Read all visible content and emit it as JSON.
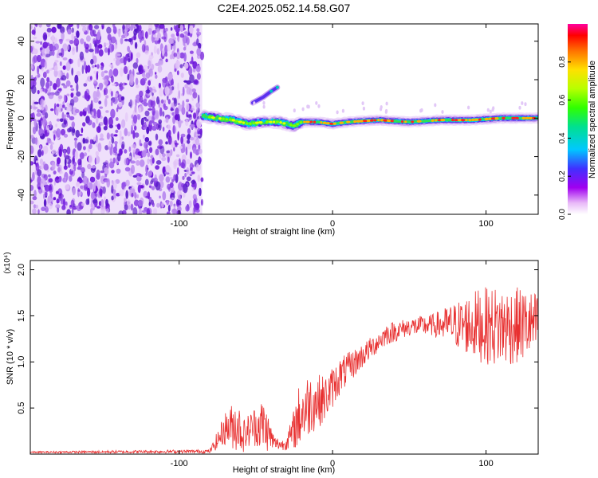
{
  "title": "C2E4.2025.052.14.58.G07",
  "chart_data": [
    {
      "type": "heatmap",
      "name": "spectrogram",
      "xlabel": "Height of straight line (km)",
      "ylabel": "Frequency (Hz)",
      "xlim": [
        -197,
        134
      ],
      "ylim": [
        -50,
        49
      ],
      "xticks": [
        -100,
        0,
        100
      ],
      "yticks": [
        -40,
        -20,
        0,
        20,
        40
      ],
      "xticklabels": [
        "-100",
        "0",
        "100"
      ],
      "yticklabels": [
        "-40",
        "-20",
        "0",
        "20",
        "40"
      ],
      "description_regions": {
        "noise_region_x": [
          -197,
          -85
        ],
        "signal_track": [
          {
            "x": -85,
            "y": 1
          },
          {
            "x": -75,
            "y": 0
          },
          {
            "x": -65,
            "y": -1
          },
          {
            "x": -55,
            "y": -3
          },
          {
            "x": -45,
            "y": -2
          },
          {
            "x": -35,
            "y": -2
          },
          {
            "x": -25,
            "y": -4
          },
          {
            "x": -20,
            "y": -2
          },
          {
            "x": -10,
            "y": -2
          },
          {
            "x": 0,
            "y": -3
          },
          {
            "x": 10,
            "y": -2
          },
          {
            "x": 30,
            "y": -1
          },
          {
            "x": 50,
            "y": -2
          },
          {
            "x": 70,
            "y": -1
          },
          {
            "x": 90,
            "y": -1
          },
          {
            "x": 110,
            "y": 0
          },
          {
            "x": 134,
            "y": 0
          }
        ],
        "side_branch": [
          {
            "x": -52,
            "y": 8
          },
          {
            "x": -45,
            "y": 11
          },
          {
            "x": -40,
            "y": 14
          },
          {
            "x": -36,
            "y": 16
          }
        ]
      }
    },
    {
      "type": "colorbar",
      "name": "amplitude-colorbar",
      "label": "Normalized spectral amplitude",
      "range": [
        0,
        1
      ],
      "ticks": [
        0.0,
        0.2,
        0.4,
        0.6,
        0.8
      ],
      "ticklabels": [
        "0.0",
        "0.2",
        "0.4",
        "0.6",
        "0.8"
      ],
      "colors": [
        "#ffffff",
        "#e8b8f8",
        "#a000f0",
        "#4030ff",
        "#00c8ff",
        "#00e090",
        "#30ff00",
        "#b8ff00",
        "#ffe000",
        "#ff7000",
        "#ff0000",
        "#ff00a0"
      ]
    },
    {
      "type": "line",
      "name": "snr",
      "xlabel": "Height of straight line (km)",
      "ylabel": "SNR (10 * v/v)",
      "scale_label": "(x10⁴)",
      "xlim": [
        -197,
        134
      ],
      "ylim": [
        0,
        2.1
      ],
      "xticks": [
        -100,
        0,
        100
      ],
      "yticks": [
        0.5,
        1.0,
        1.5,
        2.0
      ],
      "xticklabels": [
        "-100",
        "0",
        "100"
      ],
      "yticklabels": [
        "0.5",
        "1.0",
        "1.5",
        "2.0"
      ],
      "color": "#e83030",
      "envelope": [
        {
          "x": -197,
          "mean": 0.02,
          "amp": 0.01
        },
        {
          "x": -80,
          "mean": 0.03,
          "amp": 0.02
        },
        {
          "x": -75,
          "mean": 0.15,
          "amp": 0.1
        },
        {
          "x": -70,
          "mean": 0.28,
          "amp": 0.18
        },
        {
          "x": -62,
          "mean": 0.32,
          "amp": 0.3
        },
        {
          "x": -58,
          "mean": 0.2,
          "amp": 0.18
        },
        {
          "x": -52,
          "mean": 0.3,
          "amp": 0.2
        },
        {
          "x": -45,
          "mean": 0.32,
          "amp": 0.3
        },
        {
          "x": -38,
          "mean": 0.12,
          "amp": 0.08
        },
        {
          "x": -32,
          "mean": 0.1,
          "amp": 0.06
        },
        {
          "x": -27,
          "mean": 0.2,
          "amp": 0.15
        },
        {
          "x": -22,
          "mean": 0.4,
          "amp": 0.35
        },
        {
          "x": -15,
          "mean": 0.55,
          "amp": 0.35
        },
        {
          "x": -5,
          "mean": 0.6,
          "amp": 0.25
        },
        {
          "x": 5,
          "mean": 0.85,
          "amp": 0.2
        },
        {
          "x": 15,
          "mean": 1.0,
          "amp": 0.15
        },
        {
          "x": 25,
          "mean": 1.15,
          "amp": 0.12
        },
        {
          "x": 35,
          "mean": 1.3,
          "amp": 0.12
        },
        {
          "x": 50,
          "mean": 1.38,
          "amp": 0.1
        },
        {
          "x": 65,
          "mean": 1.4,
          "amp": 0.12
        },
        {
          "x": 80,
          "mean": 1.4,
          "amp": 0.25
        },
        {
          "x": 95,
          "mean": 1.4,
          "amp": 0.4
        },
        {
          "x": 110,
          "mean": 1.38,
          "amp": 0.45
        },
        {
          "x": 125,
          "mean": 1.4,
          "amp": 0.4
        },
        {
          "x": 134,
          "mean": 1.4,
          "amp": 0.35
        }
      ]
    }
  ]
}
